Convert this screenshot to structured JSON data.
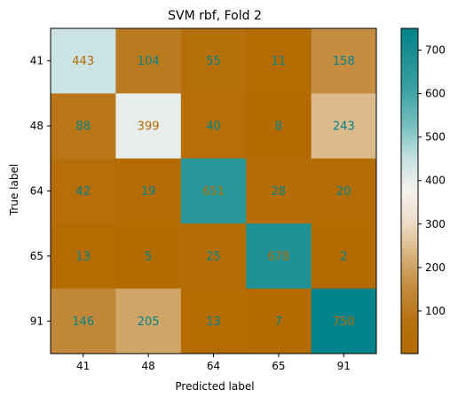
{
  "chart_data": {
    "type": "heatmap",
    "title": "SVM rbf, Fold 2",
    "xlabel": "Predicted label",
    "ylabel": "True label",
    "x_categories": [
      "41",
      "48",
      "64",
      "65",
      "91"
    ],
    "y_categories": [
      "41",
      "48",
      "64",
      "65",
      "91"
    ],
    "values": [
      [
        443,
        104,
        55,
        11,
        158
      ],
      [
        88,
        399,
        40,
        8,
        243
      ],
      [
        42,
        19,
        651,
        28,
        20
      ],
      [
        13,
        5,
        25,
        678,
        2
      ],
      [
        146,
        205,
        13,
        7,
        750
      ]
    ],
    "colorbar": {
      "colormap": "brown-white-teal (BrBG)",
      "range": [
        2,
        750
      ],
      "ticks": [
        100,
        200,
        300,
        400,
        500,
        600,
        700
      ],
      "tick_labels": [
        "100",
        "200",
        "300",
        "400",
        "500",
        "600",
        "700"
      ]
    },
    "colors": {
      "low": "#b36b00",
      "mid": "#f5f0ea",
      "high": "#00838a",
      "text_on_dark": "#00838a",
      "text_on_light": "#b36b00"
    }
  }
}
